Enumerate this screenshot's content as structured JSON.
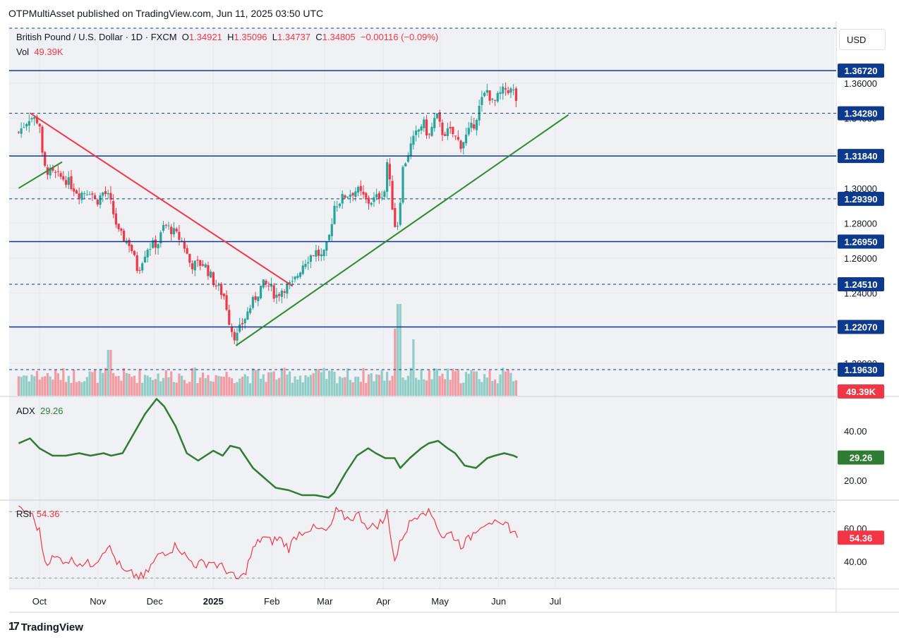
{
  "header": {
    "publisher": "OTPMultiAsset published on TradingView.com, Jun 11, 2025 03:50 UTC"
  },
  "legend": {
    "symbol": "British Pound / U.S. Dollar · 1D · FXCM",
    "open_label": "O",
    "open": "1.34921",
    "high_label": "H",
    "high": "1.35096",
    "low_label": "L",
    "low": "1.34737",
    "close_label": "C",
    "close": "1.34805",
    "change": "−0.00116 (−0.09%)",
    "vol_label": "Vol",
    "vol_value": "49.39K"
  },
  "currency": "USD",
  "footer": {
    "logo": "17",
    "brand": "TradingView"
  },
  "colors": {
    "up": "#26a69a",
    "down": "#f23645",
    "up_vol": "#8fcdc6",
    "down_vol": "#f39ba2",
    "resistance": "#0d3a8c",
    "downtrend": "#f23645",
    "uptrend": "#2e8b2e",
    "adx": "#2e7d32",
    "rsi": "#f23645"
  },
  "chart_data": [
    {
      "type": "candlestick",
      "title": "British Pound / U.S. Dollar · 1D · FXCM",
      "y_ticks": [
        "1.36000",
        "1.34000",
        "1.32000",
        "1.30000",
        "1.28000",
        "1.26000",
        "1.24000",
        "1.22000",
        "1.20000"
      ],
      "x_ticks": [
        "Oct",
        "Nov",
        "Dec",
        "2025",
        "Feb",
        "Mar",
        "Apr",
        "May",
        "Jun",
        "Jul"
      ],
      "price_levels": [
        {
          "label": "1.36720",
          "style": "solid"
        },
        {
          "label": "1.34280",
          "style": "dashed"
        },
        {
          "label": "1.31840",
          "style": "solid"
        },
        {
          "label": "1.29390",
          "style": "dashed"
        },
        {
          "label": "1.26950",
          "style": "solid"
        },
        {
          "label": "1.24510",
          "style": "dashed"
        },
        {
          "label": "1.22070",
          "style": "solid"
        },
        {
          "label": "1.19630",
          "style": "dashed"
        }
      ],
      "trendlines": [
        {
          "name": "downtrend",
          "from": [
            "2024-09-26",
            1.343
          ],
          "to": [
            "2025-02-12",
            1.244
          ]
        },
        {
          "name": "uptrend",
          "from": [
            "2025-01-13",
            1.21
          ],
          "to": [
            "2025-07-08",
            1.342
          ]
        },
        {
          "name": "early-uptrend",
          "from": [
            "2024-09-20",
            1.3
          ],
          "to": [
            "2024-10-13",
            1.315
          ]
        }
      ],
      "close_path": [
        [
          "2024-09-20",
          1.332
        ],
        [
          "2024-09-26",
          1.341
        ],
        [
          "2024-10-01",
          1.338
        ],
        [
          "2024-10-03",
          1.312
        ],
        [
          "2024-10-08",
          1.308
        ],
        [
          "2024-10-15",
          1.305
        ],
        [
          "2024-10-22",
          1.297
        ],
        [
          "2024-10-28",
          1.299
        ],
        [
          "2024-10-31",
          1.292
        ],
        [
          "2024-11-04",
          1.298
        ],
        [
          "2024-11-07",
          1.294
        ],
        [
          "2024-11-12",
          1.274
        ],
        [
          "2024-11-18",
          1.268
        ],
        [
          "2024-11-22",
          1.253
        ],
        [
          "2024-11-27",
          1.266
        ],
        [
          "2024-12-03",
          1.269
        ],
        [
          "2024-12-06",
          1.279
        ],
        [
          "2024-12-10",
          1.276
        ],
        [
          "2024-12-16",
          1.269
        ],
        [
          "2024-12-20",
          1.256
        ],
        [
          "2024-12-27",
          1.257
        ],
        [
          "2025-01-02",
          1.245
        ],
        [
          "2025-01-07",
          1.238
        ],
        [
          "2025-01-10",
          1.221
        ],
        [
          "2025-01-13",
          1.214
        ],
        [
          "2025-01-16",
          1.222
        ],
        [
          "2025-01-21",
          1.233
        ],
        [
          "2025-01-27",
          1.245
        ],
        [
          "2025-01-31",
          1.244
        ],
        [
          "2025-02-03",
          1.238
        ],
        [
          "2025-02-07",
          1.243
        ],
        [
          "2025-02-12",
          1.245
        ],
        [
          "2025-02-18",
          1.258
        ],
        [
          "2025-02-24",
          1.264
        ],
        [
          "2025-02-28",
          1.26
        ],
        [
          "2025-03-03",
          1.27
        ],
        [
          "2025-03-06",
          1.29
        ],
        [
          "2025-03-12",
          1.296
        ],
        [
          "2025-03-18",
          1.299
        ],
        [
          "2025-03-24",
          1.292
        ],
        [
          "2025-03-28",
          1.294
        ],
        [
          "2025-04-02",
          1.299
        ],
        [
          "2025-04-03",
          1.315
        ],
        [
          "2025-04-07",
          1.279
        ],
        [
          "2025-04-09",
          1.28
        ],
        [
          "2025-04-11",
          1.31
        ],
        [
          "2025-04-15",
          1.323
        ],
        [
          "2025-04-18",
          1.33
        ],
        [
          "2025-04-22",
          1.338
        ],
        [
          "2025-04-25",
          1.329
        ],
        [
          "2025-04-29",
          1.342
        ],
        [
          "2025-05-02",
          1.332
        ],
        [
          "2025-05-07",
          1.332
        ],
        [
          "2025-05-12",
          1.325
        ],
        [
          "2025-05-15",
          1.33
        ],
        [
          "2025-05-19",
          1.337
        ],
        [
          "2025-05-23",
          1.35
        ],
        [
          "2025-05-26",
          1.356
        ],
        [
          "2025-05-29",
          1.348
        ],
        [
          "2025-06-02",
          1.354
        ],
        [
          "2025-06-05",
          1.357
        ],
        [
          "2025-06-09",
          1.355
        ],
        [
          "2025-06-11",
          1.348
        ]
      ],
      "last_price": "1.34805",
      "vol_axis_label": "49.39K"
    },
    {
      "type": "line",
      "name": "ADX",
      "last_value": "29.26",
      "y_ticks": [
        "40.00",
        "20.00"
      ],
      "points": [
        [
          "2024-09-20",
          35
        ],
        [
          "2024-09-26",
          37
        ],
        [
          "2024-10-01",
          33
        ],
        [
          "2024-10-08",
          30
        ],
        [
          "2024-10-15",
          30
        ],
        [
          "2024-10-22",
          31
        ],
        [
          "2024-10-28",
          30
        ],
        [
          "2024-11-04",
          31
        ],
        [
          "2024-11-08",
          30
        ],
        [
          "2024-11-14",
          31
        ],
        [
          "2024-11-20",
          39
        ],
        [
          "2024-11-26",
          47
        ],
        [
          "2024-12-02",
          53
        ],
        [
          "2024-12-06",
          50
        ],
        [
          "2024-12-12",
          42
        ],
        [
          "2024-12-18",
          31
        ],
        [
          "2024-12-24",
          28
        ],
        [
          "2025-01-01",
          32
        ],
        [
          "2025-01-06",
          30
        ],
        [
          "2025-01-10",
          34
        ],
        [
          "2025-01-15",
          33
        ],
        [
          "2025-01-22",
          25
        ],
        [
          "2025-01-28",
          21
        ],
        [
          "2025-02-03",
          17
        ],
        [
          "2025-02-10",
          16
        ],
        [
          "2025-02-17",
          14
        ],
        [
          "2025-02-24",
          14
        ],
        [
          "2025-03-03",
          13
        ],
        [
          "2025-03-06",
          15
        ],
        [
          "2025-03-12",
          23
        ],
        [
          "2025-03-18",
          30
        ],
        [
          "2025-03-24",
          33
        ],
        [
          "2025-03-28",
          31
        ],
        [
          "2025-04-02",
          29
        ],
        [
          "2025-04-07",
          29
        ],
        [
          "2025-04-10",
          25
        ],
        [
          "2025-04-15",
          29
        ],
        [
          "2025-04-21",
          33
        ],
        [
          "2025-04-25",
          35
        ],
        [
          "2025-04-30",
          36
        ],
        [
          "2025-05-05",
          33
        ],
        [
          "2025-05-09",
          31
        ],
        [
          "2025-05-14",
          26
        ],
        [
          "2025-05-20",
          25
        ],
        [
          "2025-05-26",
          29
        ],
        [
          "2025-05-30",
          30
        ],
        [
          "2025-06-04",
          31
        ],
        [
          "2025-06-09",
          30
        ],
        [
          "2025-06-11",
          29.26
        ]
      ]
    },
    {
      "type": "line",
      "name": "RSI",
      "last_value": "54.36",
      "y_ticks": [
        "60.00",
        "40.00"
      ],
      "points": [
        [
          "2024-09-20",
          71
        ],
        [
          "2024-09-26",
          70
        ],
        [
          "2024-10-01",
          58
        ],
        [
          "2024-10-04",
          40
        ],
        [
          "2024-10-09",
          42
        ],
        [
          "2024-10-15",
          41
        ],
        [
          "2024-10-21",
          40
        ],
        [
          "2024-10-28",
          38
        ],
        [
          "2024-11-01",
          42
        ],
        [
          "2024-11-06",
          50
        ],
        [
          "2024-11-11",
          40
        ],
        [
          "2024-11-15",
          33
        ],
        [
          "2024-11-20",
          32
        ],
        [
          "2024-11-25",
          30
        ],
        [
          "2024-11-29",
          37
        ],
        [
          "2024-12-04",
          45
        ],
        [
          "2024-12-09",
          47
        ],
        [
          "2024-12-13",
          50
        ],
        [
          "2024-12-18",
          42
        ],
        [
          "2024-12-23",
          38
        ],
        [
          "2024-12-31",
          40
        ],
        [
          "2025-01-03",
          38
        ],
        [
          "2025-01-08",
          35
        ],
        [
          "2025-01-13",
          29
        ],
        [
          "2025-01-17",
          31
        ],
        [
          "2025-01-22",
          47
        ],
        [
          "2025-01-27",
          55
        ],
        [
          "2025-01-31",
          52
        ],
        [
          "2025-02-05",
          54
        ],
        [
          "2025-02-10",
          48
        ],
        [
          "2025-02-14",
          56
        ],
        [
          "2025-02-20",
          60
        ],
        [
          "2025-02-26",
          59
        ],
        [
          "2025-03-03",
          58
        ],
        [
          "2025-03-07",
          70
        ],
        [
          "2025-03-13",
          66
        ],
        [
          "2025-03-19",
          68
        ],
        [
          "2025-03-25",
          60
        ],
        [
          "2025-04-02",
          65
        ],
        [
          "2025-04-03",
          71
        ],
        [
          "2025-04-07",
          40
        ],
        [
          "2025-04-11",
          55
        ],
        [
          "2025-04-16",
          65
        ],
        [
          "2025-04-22",
          72
        ],
        [
          "2025-04-28",
          66
        ],
        [
          "2025-05-02",
          55
        ],
        [
          "2025-05-07",
          57
        ],
        [
          "2025-05-12",
          50
        ],
        [
          "2025-05-16",
          53
        ],
        [
          "2025-05-21",
          61
        ],
        [
          "2025-05-27",
          65
        ],
        [
          "2025-06-02",
          60
        ],
        [
          "2025-06-06",
          62
        ],
        [
          "2025-06-11",
          54.36
        ]
      ]
    }
  ]
}
